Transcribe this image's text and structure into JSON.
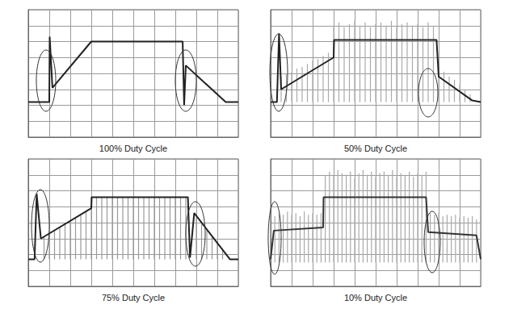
{
  "chart_data": [
    {
      "type": "line",
      "title": "100% Duty Cycle",
      "xlim": [
        0,
        10
      ],
      "ylim": [
        0,
        8
      ],
      "xticks": [
        0,
        1,
        2,
        3,
        4,
        5,
        6,
        7,
        8,
        9,
        10
      ],
      "yticks": [
        0,
        1,
        2,
        3,
        4,
        5,
        6,
        7,
        8
      ],
      "grid": true,
      "tick_labels": false,
      "series": [
        {
          "type": "line",
          "color": "#222222",
          "x": [
            0,
            1.0,
            1.02,
            1.15,
            3.0,
            7.2,
            7.35,
            7.42,
            7.5,
            9.4,
            10
          ],
          "values": [
            2.2,
            2.2,
            6.3,
            3.1,
            6.0,
            6.0,
            6.0,
            2.0,
            4.5,
            2.2,
            2.2
          ]
        }
      ]
    },
    {
      "type": "line",
      "title": "50% Duty Cycle",
      "xlim": [
        0,
        10
      ],
      "ylim": [
        0,
        8
      ],
      "xticks": [
        0,
        1,
        2,
        3,
        4,
        5,
        6,
        7,
        8,
        9,
        10
      ],
      "yticks": [
        0,
        1,
        2,
        3,
        4,
        5,
        6,
        7,
        8
      ],
      "grid": true,
      "tick_labels": false,
      "series": [
        {
          "type": "pulse",
          "color": "#aaaaaa",
          "baseline": 2.2,
          "x": [
            0.5,
            0.75,
            1.0,
            1.25,
            1.5,
            1.75,
            2.0,
            2.25,
            2.5,
            2.75,
            3.0,
            3.25,
            3.5,
            3.75,
            4.0,
            4.25,
            4.5,
            4.75,
            5.0,
            5.25,
            5.5,
            5.75,
            6.0,
            6.25,
            6.5,
            6.75,
            7.0,
            7.25,
            7.5,
            7.75,
            8.0,
            8.25,
            8.5,
            8.75,
            9.0,
            9.25,
            9.5
          ],
          "values": [
            3.8,
            4.0,
            4.1,
            4.3,
            4.4,
            4.6,
            4.8,
            4.9,
            5.1,
            5.3,
            7.0,
            7.2,
            6.9,
            7.1,
            7.3,
            7.0,
            7.2,
            6.9,
            7.1,
            7.2,
            7.0,
            7.3,
            6.9,
            7.1,
            7.2,
            7.0,
            7.1,
            6.9,
            7.2,
            7.0,
            4.3,
            4.1,
            3.8,
            3.6,
            3.3,
            3.0,
            2.7
          ]
        },
        {
          "type": "line",
          "color": "#222222",
          "x": [
            0,
            0.3,
            0.4,
            0.5,
            3.0,
            3.02,
            7.9,
            8.0,
            9.6,
            10
          ],
          "values": [
            2.2,
            2.2,
            6.5,
            3.0,
            5.0,
            6.1,
            6.1,
            3.8,
            2.3,
            2.2
          ]
        }
      ]
    },
    {
      "type": "line",
      "title": "75% Duty Cycle",
      "xlim": [
        0,
        10
      ],
      "ylim": [
        0,
        8
      ],
      "xticks": [
        0,
        1,
        2,
        3,
        4,
        5,
        6,
        7,
        8,
        9,
        10
      ],
      "yticks": [
        0,
        1,
        2,
        3,
        4,
        5,
        6,
        7,
        8
      ],
      "grid": true,
      "tick_labels": false,
      "series": [
        {
          "type": "pulse",
          "color": "#999999",
          "baseline": 1.7,
          "x": [
            0.75,
            1.0,
            1.25,
            1.5,
            1.75,
            2.0,
            2.25,
            2.5,
            2.75,
            3.0,
            3.25,
            3.5,
            3.75,
            4.0,
            4.25,
            4.5,
            4.75,
            5.0,
            5.25,
            5.5,
            5.75,
            6.0,
            6.25,
            6.5,
            6.75,
            7.0,
            7.25,
            7.5,
            8.0,
            8.25,
            8.5,
            8.75,
            9.0,
            9.25
          ],
          "values": [
            3.1,
            3.3,
            3.5,
            3.7,
            3.9,
            4.1,
            4.3,
            4.5,
            4.7,
            5.6,
            5.6,
            5.6,
            5.6,
            5.6,
            5.6,
            5.6,
            5.6,
            5.6,
            5.6,
            5.6,
            5.6,
            5.6,
            5.6,
            5.6,
            5.6,
            5.6,
            5.6,
            5.6,
            4.3,
            3.9,
            3.5,
            3.1,
            2.7,
            2.3
          ]
        },
        {
          "type": "line",
          "color": "#222222",
          "x": [
            0,
            0.3,
            0.4,
            0.6,
            3.0,
            3.02,
            7.6,
            7.7,
            7.9,
            9.6,
            10
          ],
          "values": [
            1.7,
            1.7,
            5.8,
            3.0,
            4.9,
            5.6,
            5.6,
            1.8,
            4.6,
            1.7,
            1.7
          ]
        }
      ]
    },
    {
      "type": "line",
      "title": "10% Duty Cycle",
      "xlim": [
        0,
        10
      ],
      "ylim": [
        0,
        8
      ],
      "xticks": [
        0,
        1,
        2,
        3,
        4,
        5,
        6,
        7,
        8,
        9,
        10
      ],
      "yticks": [
        0,
        1,
        2,
        3,
        4,
        5,
        6,
        7,
        8
      ],
      "grid": true,
      "tick_labels": false,
      "series": [
        {
          "type": "pulse",
          "color": "#aaaaaa",
          "baseline": 1.5,
          "x": [
            0.2,
            0.4,
            0.6,
            0.8,
            1.0,
            1.2,
            1.4,
            1.6,
            1.8,
            2.0,
            2.2,
            2.4,
            2.6,
            2.8,
            3.0,
            3.2,
            3.4,
            3.6,
            3.8,
            4.0,
            4.2,
            4.4,
            4.6,
            4.8,
            5.0,
            5.2,
            5.4,
            5.6,
            5.8,
            6.0,
            6.2,
            6.4,
            6.6,
            6.8,
            7.0,
            7.2,
            7.4,
            7.6,
            7.8,
            8.0,
            8.2,
            8.4,
            8.6,
            8.8,
            9.0,
            9.2,
            9.4,
            9.6,
            9.8
          ],
          "values": [
            4.4,
            4.6,
            4.5,
            4.7,
            4.5,
            4.6,
            4.4,
            4.7,
            4.5,
            4.6,
            4.5,
            4.6,
            7.0,
            7.2,
            6.9,
            7.3,
            7.1,
            7.0,
            7.2,
            6.8,
            7.1,
            7.3,
            7.0,
            7.2,
            6.9,
            7.1,
            7.2,
            7.0,
            7.3,
            6.9,
            7.1,
            7.0,
            7.2,
            6.9,
            7.1,
            7.0,
            7.2,
            4.6,
            4.5,
            4.6,
            4.4,
            4.5,
            4.4,
            4.5,
            4.3,
            4.4,
            4.3,
            4.4,
            4.2
          ]
        },
        {
          "type": "line",
          "color": "#333333",
          "x": [
            0,
            0.15,
            2.5,
            2.52,
            7.4,
            7.5,
            9.8,
            10
          ],
          "values": [
            1.7,
            3.5,
            3.7,
            5.6,
            5.6,
            3.4,
            3.2,
            1.7
          ]
        }
      ]
    }
  ]
}
